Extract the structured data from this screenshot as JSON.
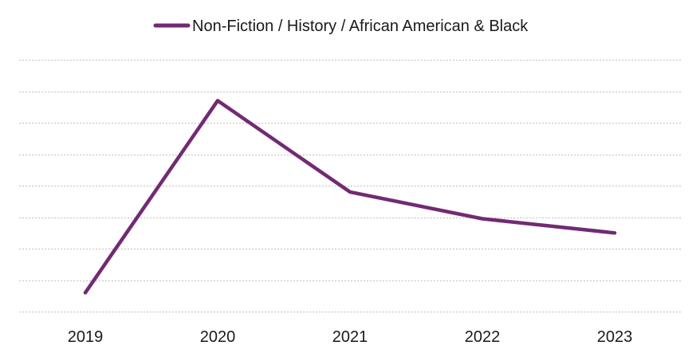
{
  "chart_data": {
    "type": "line",
    "title": "",
    "xlabel": "",
    "ylabel": "",
    "categories": [
      "2019",
      "2020",
      "2021",
      "2022",
      "2023"
    ],
    "series": [
      {
        "name": "Non-Fiction / History / African American & Black",
        "values": [
          6,
          67,
          38,
          29.5,
          25
        ],
        "color": "#722a73"
      }
    ],
    "ylim": [
      0,
      80
    ],
    "y_gridline_count": 8,
    "y_tick_labels_visible": false,
    "grid": true,
    "grid_style": "dotted",
    "grid_color": "#bfbfbf",
    "legend_position": "top-center"
  }
}
